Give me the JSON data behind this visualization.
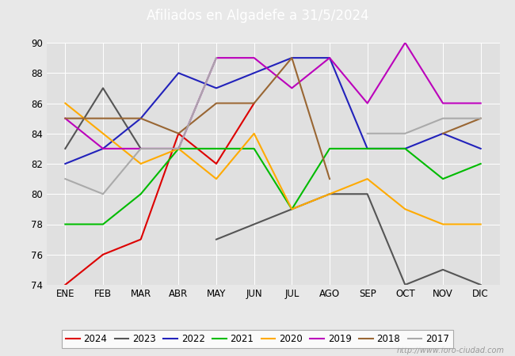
{
  "title": "Afiliados en Algadefe a 31/5/2024",
  "title_bg_color": "#5b8dd9",
  "title_text_color": "white",
  "months": [
    "ENE",
    "FEB",
    "MAR",
    "ABR",
    "MAY",
    "JUN",
    "JUL",
    "AGO",
    "SEP",
    "OCT",
    "NOV",
    "DIC"
  ],
  "ylim": [
    74,
    90
  ],
  "yticks": [
    74,
    76,
    78,
    80,
    82,
    84,
    86,
    88,
    90
  ],
  "series": {
    "2024": {
      "color": "#dd0000",
      "data": [
        74,
        76,
        77,
        84,
        82,
        86,
        null,
        null,
        null,
        null,
        null,
        null
      ]
    },
    "2023": {
      "color": "#555555",
      "data": [
        83,
        87,
        83,
        null,
        77,
        78,
        79,
        80,
        80,
        74,
        75,
        74
      ]
    },
    "2022": {
      "color": "#2222bb",
      "data": [
        82,
        83,
        85,
        88,
        87,
        88,
        89,
        89,
        83,
        83,
        84,
        83
      ]
    },
    "2021": {
      "color": "#00bb00",
      "data": [
        78,
        78,
        80,
        83,
        83,
        83,
        79,
        83,
        83,
        83,
        81,
        82
      ]
    },
    "2020": {
      "color": "#ffaa00",
      "data": [
        86,
        84,
        82,
        83,
        81,
        84,
        79,
        80,
        81,
        79,
        78,
        78
      ]
    },
    "2019": {
      "color": "#bb00bb",
      "data": [
        85,
        83,
        83,
        83,
        89,
        89,
        87,
        89,
        86,
        90,
        86,
        86
      ]
    },
    "2018": {
      "color": "#996633",
      "data": [
        85,
        85,
        85,
        84,
        86,
        86,
        89,
        81,
        null,
        null,
        84,
        85
      ]
    },
    "2017": {
      "color": "#aaaaaa",
      "data": [
        81,
        80,
        83,
        83,
        89,
        null,
        null,
        null,
        84,
        84,
        85,
        85
      ]
    }
  },
  "legend_order": [
    "2024",
    "2023",
    "2022",
    "2021",
    "2020",
    "2019",
    "2018",
    "2017"
  ],
  "watermark": "http://www.foro-ciudad.com",
  "outer_bg_color": "#e8e8e8",
  "plot_bg_color": "#e0e0e0"
}
